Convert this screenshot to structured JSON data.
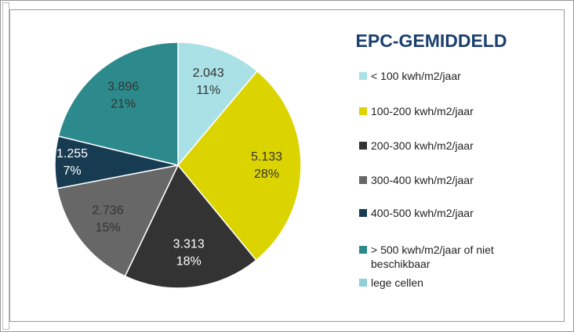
{
  "chart_data": {
    "type": "pie",
    "title": "EPC-GEMIDDELD",
    "categories": [
      "< 100 kwh/m2/jaar",
      "100-200 kwh/m2/jaar",
      "200-300 kwh/m2/jaar",
      "300-400 kwh/m2/jaar",
      "400-500 kwh/m2/jaar",
      "> 500 kwh/m2/jaar of niet beschikbaar",
      "lege cellen"
    ],
    "values": [
      2043,
      5133,
      3313,
      2736,
      1255,
      3896,
      null
    ],
    "value_labels": [
      "2.043",
      "5.133",
      "3.313",
      "2.736",
      "1.255",
      "3.896",
      null
    ],
    "percent_labels": [
      "11%",
      "28%",
      "18%",
      "15%",
      "7%",
      "21%",
      null
    ],
    "colors": [
      "#a9e1e7",
      "#dcd400",
      "#333333",
      "#676767",
      "#173c52",
      "#2d8a8c",
      "#8fd0d8"
    ],
    "label_colors": [
      "#333333",
      "#333333",
      "#ffffff",
      "#333333",
      "#ffffff",
      "#333333",
      null
    ],
    "legend": "right"
  }
}
